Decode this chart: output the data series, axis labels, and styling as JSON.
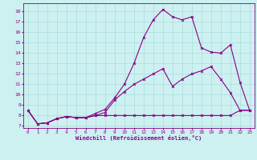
{
  "xlabel": "Windchill (Refroidissement éolien,°C)",
  "bg_color": "#cdf0f0",
  "grid_color": "#aadddd",
  "line_color": "#880088",
  "xlim": [
    -0.5,
    23.5
  ],
  "ylim": [
    6.8,
    18.8
  ],
  "yticks": [
    7,
    8,
    9,
    10,
    11,
    12,
    13,
    14,
    15,
    16,
    17,
    18
  ],
  "xticks": [
    0,
    1,
    2,
    3,
    4,
    5,
    6,
    7,
    8,
    9,
    10,
    11,
    12,
    13,
    14,
    15,
    16,
    17,
    18,
    19,
    20,
    21,
    22,
    23
  ],
  "line1_x": [
    0,
    1,
    2,
    3,
    4,
    5,
    6,
    7,
    8,
    9,
    10,
    11,
    12,
    13,
    14,
    15,
    16,
    17,
    18,
    19,
    20,
    21,
    22,
    23
  ],
  "line1_y": [
    8.5,
    7.2,
    7.3,
    7.7,
    7.9,
    7.8,
    7.8,
    8.0,
    8.0,
    8.0,
    8.0,
    8.0,
    8.0,
    8.0,
    8.0,
    8.0,
    8.0,
    8.0,
    8.0,
    8.0,
    8.0,
    8.0,
    8.5,
    8.5
  ],
  "line2_x": [
    0,
    1,
    2,
    3,
    4,
    5,
    6,
    7,
    8,
    9,
    10,
    11,
    12,
    13,
    14,
    15,
    16,
    17,
    18,
    19,
    20,
    21,
    22,
    23
  ],
  "line2_y": [
    8.5,
    7.2,
    7.3,
    7.7,
    7.9,
    7.8,
    7.8,
    8.2,
    8.6,
    9.7,
    11.0,
    13.0,
    15.5,
    17.2,
    18.2,
    17.5,
    17.2,
    17.5,
    14.5,
    14.1,
    14.0,
    14.8,
    11.2,
    8.5
  ],
  "line3_x": [
    0,
    1,
    2,
    3,
    4,
    5,
    6,
    7,
    8,
    9,
    10,
    11,
    12,
    13,
    14,
    15,
    16,
    17,
    18,
    19,
    20,
    21,
    22,
    23
  ],
  "line3_y": [
    8.5,
    7.2,
    7.3,
    7.7,
    7.9,
    7.8,
    7.8,
    8.0,
    8.3,
    9.5,
    10.3,
    11.0,
    11.5,
    12.0,
    12.5,
    10.8,
    11.5,
    12.0,
    12.3,
    12.7,
    11.5,
    10.2,
    8.5,
    8.5
  ]
}
